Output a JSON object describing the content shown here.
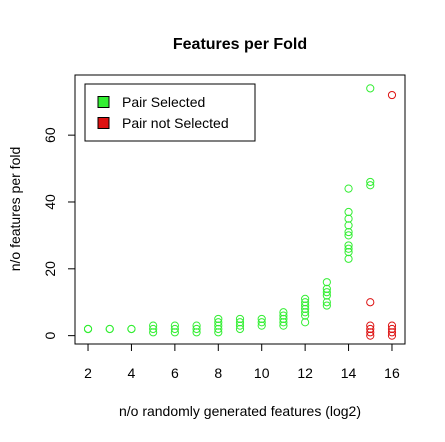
{
  "chart_data": {
    "type": "scatter",
    "title": "Features per Fold",
    "xlabel": "n/o randomly generated features (log2)",
    "ylabel": "n/o features per fold",
    "xlim": [
      1.4,
      16.6
    ],
    "ylim": [
      -2.5,
      78
    ],
    "xticks": [
      2,
      4,
      6,
      8,
      10,
      12,
      14,
      16
    ],
    "yticks": [
      0,
      20,
      40,
      60
    ],
    "grid": false,
    "legend_position": "top-left",
    "marker": "open-circle",
    "series": [
      {
        "name": "Pair Selected",
        "color": "#33ee33",
        "points": [
          [
            2,
            2
          ],
          [
            2,
            2
          ],
          [
            2,
            2
          ],
          [
            3,
            2
          ],
          [
            3,
            2
          ],
          [
            4,
            2
          ],
          [
            4,
            2
          ],
          [
            5,
            1
          ],
          [
            5,
            2
          ],
          [
            5,
            3
          ],
          [
            6,
            1
          ],
          [
            6,
            2
          ],
          [
            6,
            3
          ],
          [
            7,
            1
          ],
          [
            7,
            2
          ],
          [
            7,
            3
          ],
          [
            8,
            1
          ],
          [
            8,
            2
          ],
          [
            8,
            3
          ],
          [
            8,
            4
          ],
          [
            8,
            5
          ],
          [
            9,
            2
          ],
          [
            9,
            3
          ],
          [
            9,
            4
          ],
          [
            9,
            5
          ],
          [
            10,
            3
          ],
          [
            10,
            4
          ],
          [
            10,
            5
          ],
          [
            11,
            3
          ],
          [
            11,
            4
          ],
          [
            11,
            5
          ],
          [
            11,
            6
          ],
          [
            11,
            7
          ],
          [
            12,
            4
          ],
          [
            12,
            6
          ],
          [
            12,
            7
          ],
          [
            12,
            8
          ],
          [
            12,
            9
          ],
          [
            12,
            10
          ],
          [
            12,
            11
          ],
          [
            13,
            9
          ],
          [
            13,
            10
          ],
          [
            13,
            12
          ],
          [
            13,
            13
          ],
          [
            13,
            14
          ],
          [
            13,
            16
          ],
          [
            14,
            23
          ],
          [
            14,
            25
          ],
          [
            14,
            26
          ],
          [
            14,
            27
          ],
          [
            14,
            30
          ],
          [
            14,
            31
          ],
          [
            14,
            33
          ],
          [
            14,
            35
          ],
          [
            14,
            37
          ],
          [
            14,
            44
          ],
          [
            15,
            45
          ],
          [
            15,
            46
          ],
          [
            15,
            74
          ]
        ]
      },
      {
        "name": "Pair not Selected",
        "color": "#dd1111",
        "points": [
          [
            15,
            0
          ],
          [
            15,
            1
          ],
          [
            15,
            2
          ],
          [
            15,
            3
          ],
          [
            15,
            10
          ],
          [
            16,
            0
          ],
          [
            16,
            1
          ],
          [
            16,
            2
          ],
          [
            16,
            3
          ],
          [
            16,
            72
          ]
        ]
      }
    ]
  }
}
